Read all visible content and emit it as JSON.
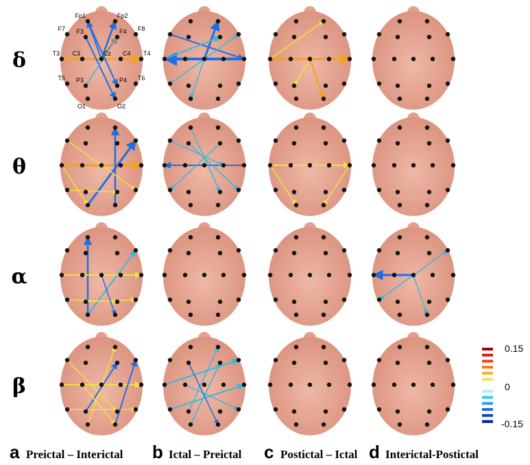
{
  "rows": [
    {
      "label": "δ"
    },
    {
      "label": "θ"
    },
    {
      "label": "α"
    },
    {
      "label": "β"
    }
  ],
  "columns": [
    {
      "letter": "a",
      "label": "Preictal – Interictal"
    },
    {
      "letter": "b",
      "label": "Ictal – Preictal"
    },
    {
      "letter": "c",
      "label": "Postictal – Ictal"
    },
    {
      "letter": "d",
      "label": "Interictal-Postictal"
    }
  ],
  "electrodes": [
    "Fp1",
    "Fp2",
    "F7",
    "F3",
    "F4",
    "F8",
    "T3",
    "C3",
    "Cz",
    "C4",
    "T4",
    "T5",
    "P3",
    "P4",
    "T6",
    "O1",
    "O2"
  ],
  "colorbar": {
    "max": 0.15,
    "mid": 0,
    "min": -0.15
  }
}
